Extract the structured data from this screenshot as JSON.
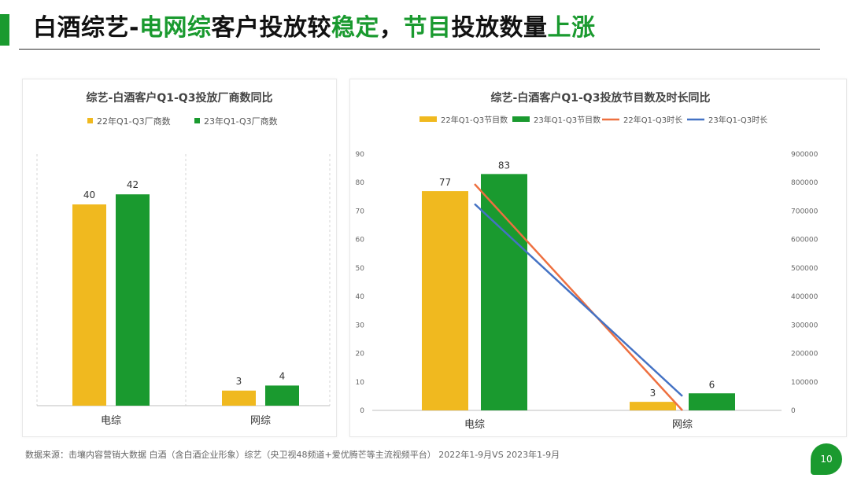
{
  "slide": {
    "title_parts": [
      {
        "text": "白酒综艺-",
        "style": "k"
      },
      {
        "text": "电网综",
        "style": "g"
      },
      {
        "text": "客户投放较",
        "style": "k"
      },
      {
        "text": "稳定",
        "style": "g"
      },
      {
        "text": "，",
        "style": "k"
      },
      {
        "text": "节目",
        "style": "g"
      },
      {
        "text": "投放数量",
        "style": "k"
      },
      {
        "text": "上涨",
        "style": "g"
      }
    ],
    "footnote": "数据来源：击壤内容营销大数据    白酒（含白酒企业形象）综艺（央卫视48频道+爱优腾芒等主流视频平台） 2022年1-9月VS 2023年1-9月",
    "page_number": "10"
  },
  "colors": {
    "green": "#1a9a2f",
    "yellow": "#f0b91f",
    "orange_line": "#ee7040",
    "blue_line": "#4472c4"
  },
  "chart_data": [
    {
      "type": "bar",
      "title": "综艺-白酒客户Q1-Q3投放厂商数同比",
      "categories": [
        "电综",
        "网综"
      ],
      "series": [
        {
          "name": "22年Q1-Q3厂商数",
          "values": [
            40,
            3
          ],
          "color": "#f0b91f"
        },
        {
          "name": "23年Q1-Q3厂商数",
          "values": [
            42,
            4
          ],
          "color": "#1a9a2f"
        }
      ],
      "ylim": [
        0,
        50
      ],
      "y_axis_visible": false,
      "legend_position": "top"
    },
    {
      "type": "bar+line",
      "title": "综艺-白酒客户Q1-Q3投放节目数及时长同比",
      "categories": [
        "电综",
        "网综"
      ],
      "series": [
        {
          "name": "22年Q1-Q3节目数",
          "kind": "bar",
          "axis": "left",
          "values": [
            77,
            3
          ],
          "color": "#f0b91f"
        },
        {
          "name": "23年Q1-Q3节目数",
          "kind": "bar",
          "axis": "left",
          "values": [
            83,
            6
          ],
          "color": "#1a9a2f"
        },
        {
          "name": "22年Q1-Q3时长",
          "kind": "line",
          "axis": "right",
          "values": [
            795000,
            0
          ],
          "color": "#ee7040"
        },
        {
          "name": "23年Q1-Q3时长",
          "kind": "line",
          "axis": "right",
          "values": [
            725000,
            50000
          ],
          "color": "#4472c4"
        }
      ],
      "y_left": {
        "min": 0,
        "max": 90,
        "ticks": [
          "0",
          "10",
          "20",
          "30",
          "40",
          "50",
          "60",
          "70",
          "80",
          "90"
        ]
      },
      "y_right": {
        "min": 0,
        "max": 900000,
        "ticks": [
          "0",
          "100000",
          "200000",
          "300000",
          "400000",
          "500000",
          "600000",
          "700000",
          "800000",
          "900000"
        ]
      },
      "legend_position": "top"
    }
  ]
}
